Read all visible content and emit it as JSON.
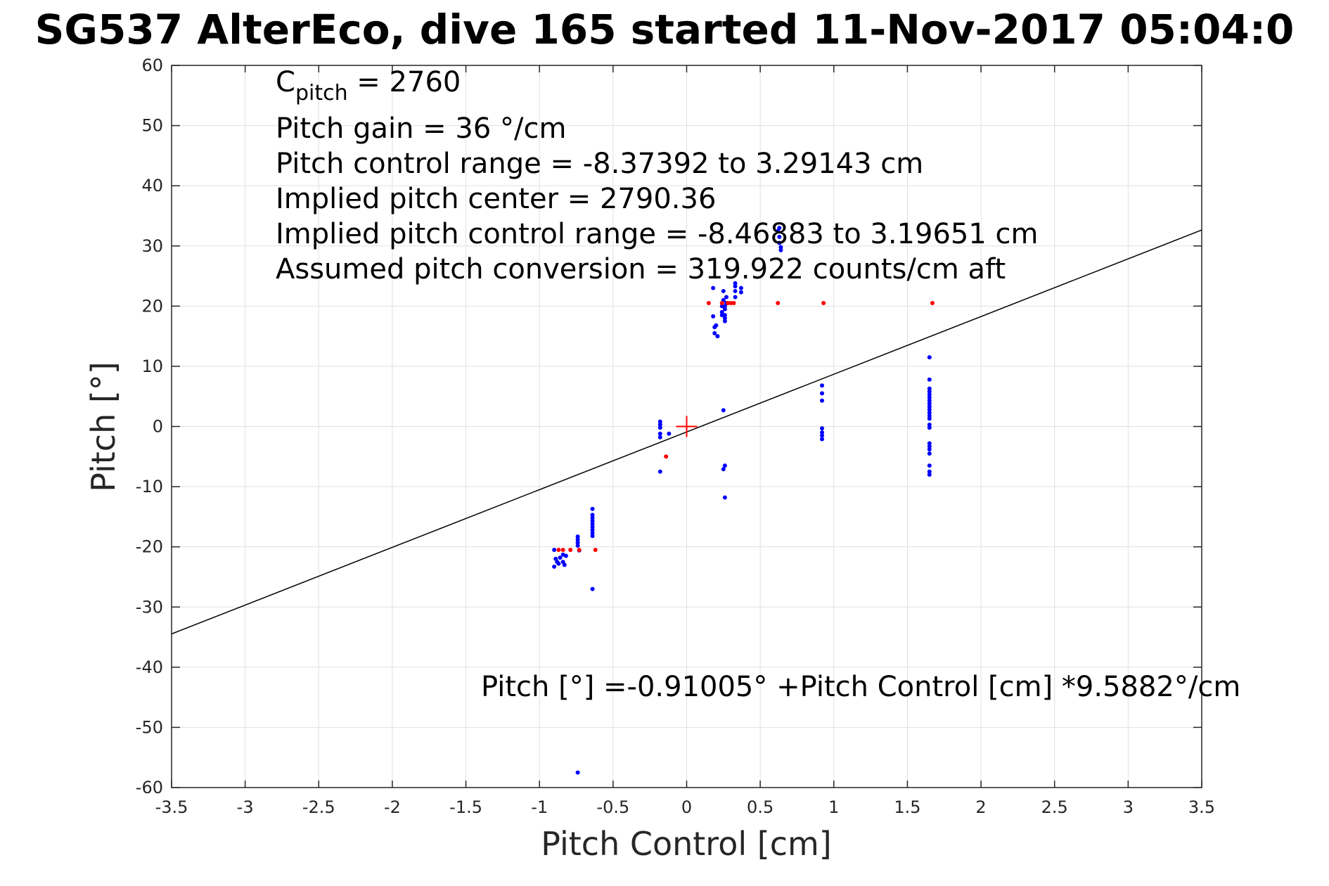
{
  "chart_data": {
    "type": "scatter",
    "title": "SG537 AlterEco, dive 165 started 11-Nov-2017 05:04:0",
    "xlabel": "Pitch Control [cm]",
    "ylabel": "Pitch [°]",
    "xlim": [
      -3.5,
      3.5
    ],
    "ylim": [
      -60,
      60
    ],
    "xticks": [
      -3.5,
      -3,
      -2.5,
      -2,
      -1.5,
      -1,
      -0.5,
      0,
      0.5,
      1,
      1.5,
      2,
      2.5,
      3,
      3.5
    ],
    "yticks": [
      -60,
      -50,
      -40,
      -30,
      -20,
      -10,
      0,
      10,
      20,
      30,
      40,
      50,
      60
    ],
    "grid": true,
    "annotations": {
      "c_pitch_label": "C",
      "c_pitch_sub": "pitch",
      "c_pitch_value": " = 2760",
      "pitch_gain": "Pitch gain = 36 °/cm",
      "pitch_control_range": "Pitch control range = -8.37392 to 3.29143 cm",
      "implied_pitch_center": "Implied pitch center = 2790.36",
      "implied_pitch_control_range": "Implied pitch control range = -8.46883 to 3.19651 cm",
      "assumed_pitch_conversion": "Assumed pitch conversion = 319.922 counts/cm aft",
      "fit_equation": "Pitch [°] =-0.91005° +Pitch Control [cm] *9.5882°/cm"
    },
    "fit_line": {
      "intercept": -0.91005,
      "slope": 9.5882,
      "color": "#000000"
    },
    "center_marker": {
      "x": 0,
      "y": 0,
      "color": "#ff0000"
    },
    "series": [
      {
        "color": "#0000ff",
        "points": [
          [
            -0.9,
            -20.5
          ],
          [
            -0.89,
            -22
          ],
          [
            -0.88,
            -22.5
          ],
          [
            -0.87,
            -22.8
          ],
          [
            -0.9,
            -23.3
          ],
          [
            -0.86,
            -21.8
          ],
          [
            -0.84,
            -22.5
          ],
          [
            -0.83,
            -23
          ],
          [
            -0.82,
            -21.5
          ],
          [
            -0.84,
            -21.3
          ],
          [
            -0.74,
            -18.3
          ],
          [
            -0.74,
            -18.8
          ],
          [
            -0.74,
            -19.3
          ],
          [
            -0.74,
            -19.8
          ],
          [
            -0.73,
            -20.6
          ],
          [
            -0.74,
            -57.5
          ],
          [
            -0.64,
            -13.7
          ],
          [
            -0.64,
            -14.7
          ],
          [
            -0.64,
            -15.2
          ],
          [
            -0.64,
            -15.7
          ],
          [
            -0.64,
            -16.2
          ],
          [
            -0.64,
            -16.7
          ],
          [
            -0.64,
            -17.2
          ],
          [
            -0.64,
            -17.7
          ],
          [
            -0.64,
            -18.2
          ],
          [
            -0.64,
            -27
          ],
          [
            -0.18,
            0.8
          ],
          [
            -0.18,
            0.3
          ],
          [
            -0.18,
            -0.2
          ],
          [
            -0.18,
            -1.2
          ],
          [
            -0.18,
            -1.8
          ],
          [
            -0.18,
            -7.5
          ],
          [
            -0.12,
            -1.2
          ],
          [
            0.18,
            23
          ],
          [
            0.18,
            18.3
          ],
          [
            0.19,
            16.5
          ],
          [
            0.19,
            15.5
          ],
          [
            0.21,
            15
          ],
          [
            0.2,
            16.8
          ],
          [
            0.24,
            20
          ],
          [
            0.24,
            19
          ],
          [
            0.24,
            18.5
          ],
          [
            0.25,
            21
          ],
          [
            0.25,
            22.5
          ],
          [
            0.26,
            20
          ],
          [
            0.26,
            19.5
          ],
          [
            0.26,
            18.5
          ],
          [
            0.26,
            18
          ],
          [
            0.26,
            17.5
          ],
          [
            0.27,
            21.5
          ],
          [
            0.27,
            20.5
          ],
          [
            0.33,
            23.8
          ],
          [
            0.33,
            23.3
          ],
          [
            0.33,
            22.5
          ],
          [
            0.33,
            21.5
          ],
          [
            0.37,
            23
          ],
          [
            0.37,
            22.3
          ],
          [
            0.25,
            2.7
          ],
          [
            0.26,
            -6.5
          ],
          [
            0.25,
            -7.1
          ],
          [
            0.26,
            -11.8
          ],
          [
            0.63,
            33
          ],
          [
            0.63,
            31.5
          ],
          [
            0.63,
            30.5
          ],
          [
            0.64,
            29.8
          ],
          [
            0.64,
            29.3
          ],
          [
            0.62,
            32.5
          ],
          [
            0.92,
            6.8
          ],
          [
            0.92,
            5.5
          ],
          [
            0.92,
            4.3
          ],
          [
            0.92,
            -0.3
          ],
          [
            0.92,
            -1
          ],
          [
            0.92,
            -1.5
          ],
          [
            0.92,
            -2.1
          ],
          [
            1.65,
            11.5
          ],
          [
            1.65,
            7.8
          ],
          [
            1.65,
            6.3
          ],
          [
            1.65,
            5.8
          ],
          [
            1.65,
            5.3
          ],
          [
            1.65,
            4.8
          ],
          [
            1.65,
            4.3
          ],
          [
            1.65,
            3.8
          ],
          [
            1.65,
            3.3
          ],
          [
            1.65,
            2.8
          ],
          [
            1.65,
            2.3
          ],
          [
            1.65,
            1.8
          ],
          [
            1.65,
            1.3
          ],
          [
            1.65,
            0.3
          ],
          [
            1.65,
            -0.2
          ],
          [
            1.65,
            -2.8
          ],
          [
            1.65,
            -3.3
          ],
          [
            1.65,
            -3.8
          ],
          [
            1.65,
            -4.5
          ],
          [
            1.65,
            -6.5
          ],
          [
            1.65,
            -7.5
          ],
          [
            1.65,
            -8
          ]
        ]
      },
      {
        "color": "#ff0000",
        "points": [
          [
            -0.87,
            -20.5
          ],
          [
            -0.84,
            -20.5
          ],
          [
            -0.79,
            -20.5
          ],
          [
            -0.73,
            -20.5
          ],
          [
            -0.62,
            -20.5
          ],
          [
            -0.14,
            -5
          ],
          [
            0.15,
            20.5
          ],
          [
            0.24,
            20.5
          ],
          [
            0.28,
            20.5
          ],
          [
            0.3,
            20.5
          ],
          [
            0.32,
            20.5
          ],
          [
            0.62,
            20.5
          ],
          [
            0.93,
            20.5
          ],
          [
            1.67,
            20.5
          ]
        ]
      }
    ]
  }
}
